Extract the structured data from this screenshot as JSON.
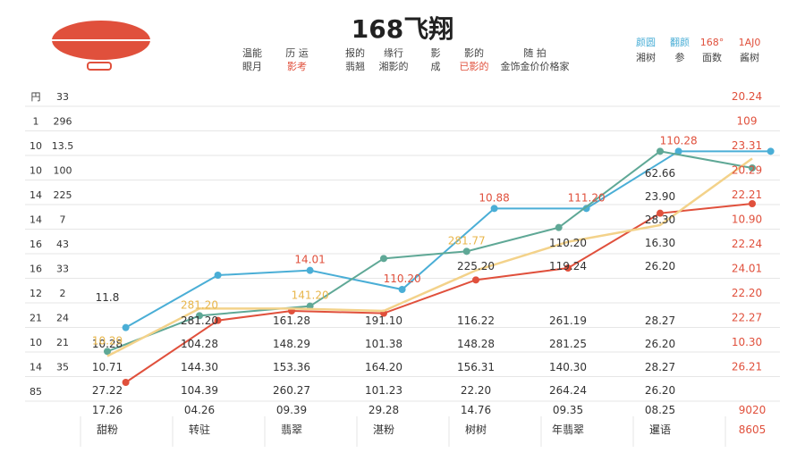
{
  "chart_data": {
    "type": "line",
    "title": "168飞翔",
    "header_left_rows": [
      [
        "温能",
        "历 运",
        "报的",
        "缘行",
        "影",
        "影的",
        "随 拍"
      ],
      [
        "眼月",
        "影考",
        "翡翘",
        "湘影的",
        "成",
        "已影的",
        "金饰金价价格家"
      ]
    ],
    "header_right_rows": [
      [
        "颜圆",
        "翻颜",
        "168°",
        "1AJ0"
      ],
      [
        "湘树",
        "参",
        "面数",
        "酱树"
      ]
    ],
    "row_labels": [
      "円",
      "1",
      "10",
      "10",
      "14",
      "14",
      "16",
      "16",
      "12",
      "21",
      "10",
      "14",
      "85"
    ],
    "row_values": [
      "33",
      "296",
      "13.5",
      "100",
      "225",
      "7",
      "43",
      "33",
      "2",
      "24",
      "21",
      "35",
      ""
    ],
    "right_labels": [
      "20.24",
      "109",
      "23.31",
      "20.29",
      "22.21",
      "10.90",
      "22.24",
      "24.01",
      "22.20",
      "22.27",
      "10.30",
      "26.21"
    ],
    "categories": [
      "甜粉",
      "转驻",
      "翡翠",
      "湛粉",
      "树树",
      "年翡翠",
      "暹语",
      "8605"
    ],
    "bottom_values": [
      "17.26",
      "04.26",
      "09.39",
      "29.28",
      "14.76",
      "09.35",
      "08.25",
      "9020"
    ],
    "table_rows": [
      [
        "11.8",
        "",
        "",
        "",
        "",
        "",
        "",
        ""
      ],
      [
        "",
        "281.20",
        "161.28",
        "191.10",
        "116.22",
        "261.19",
        "28.27",
        ""
      ],
      [
        "10.28",
        "104.28",
        "148.29",
        "101.38",
        "148.28",
        "281.25",
        "26.20",
        ""
      ],
      [
        "10.71",
        "144.30",
        "153.36",
        "164.20",
        "156.31",
        "140.30",
        "28.27",
        ""
      ],
      [
        "27.22",
        "104.39",
        "260.27",
        "101.23",
        "22.20",
        "264.24",
        "26.20",
        ""
      ]
    ],
    "upper_rows": [
      [
        "",
        "",
        "",
        "",
        "",
        "",
        "62.66",
        ""
      ],
      [
        "",
        "",
        "",
        "",
        "",
        "",
        "23.90",
        ""
      ],
      [
        "",
        "",
        "",
        "",
        "",
        "",
        "28.30",
        ""
      ],
      [
        "",
        "",
        "",
        "",
        "",
        "110.20",
        "16.30",
        ""
      ],
      [
        "",
        "",
        "",
        "",
        "225.20",
        "119.24",
        "26.20",
        ""
      ]
    ],
    "annotations": [
      {
        "text": "14.01",
        "color": "#e0503c",
        "series": 0,
        "idx": 2
      },
      {
        "text": "110.20",
        "color": "#e0503c",
        "series": 0,
        "idx": 3
      },
      {
        "text": "10.88",
        "color": "#e0503c",
        "series": 0,
        "idx": 4
      },
      {
        "text": "111.20",
        "color": "#e0503c",
        "series": 0,
        "idx": 5
      },
      {
        "text": "110.28",
        "color": "#e0503c",
        "series": 0,
        "idx": 6
      },
      {
        "text": "281.77",
        "color": "#e8b64b",
        "series": 2,
        "idx": 4
      },
      {
        "text": "281.20",
        "color": "#e8b64b",
        "series": 2,
        "idx": 1
      },
      {
        "text": "141.20",
        "color": "#e8b64b",
        "series": 2,
        "idx": 2
      },
      {
        "text": "10.29",
        "color": "#e8b64b",
        "series": 2,
        "idx": 0
      }
    ],
    "ylim": [
      0,
      12
    ],
    "grid": true,
    "legend": "none",
    "series": [
      {
        "color": "#4aaed6",
        "values": [
          3.2,
          5.4,
          5.6,
          4.8,
          8.2,
          8.2,
          10.6,
          10.6
        ],
        "x": [
          0.2,
          1.2,
          2.2,
          3.2,
          4.2,
          5.2,
          6.2,
          7.2
        ]
      },
      {
        "color": "#e0503c",
        "values": [
          0.9,
          3.5,
          3.9,
          3.8,
          5.2,
          5.7,
          8.0,
          8.4
        ],
        "x": [
          0.2,
          1.2,
          2.0,
          3.0,
          4.0,
          5.0,
          6.0,
          7.0
        ]
      },
      {
        "color": "#5fa896",
        "values": [
          2.2,
          3.7,
          4.1,
          6.1,
          6.4,
          7.4,
          10.6,
          9.9
        ],
        "x": [
          0.0,
          1.0,
          2.2,
          3.0,
          3.9,
          4.9,
          6.0,
          7.0
        ]
      },
      {
        "color": "#f3d28a",
        "values": [
          2.0,
          4.0,
          4.0,
          3.9,
          5.6,
          6.8,
          7.5,
          10.3
        ],
        "x": [
          0.0,
          1.0,
          2.0,
          3.0,
          4.0,
          5.0,
          6.0,
          7.0
        ]
      }
    ]
  },
  "icons": {
    "logo": "airship-logo-icon"
  },
  "colors": {
    "red": "#e0503c",
    "blue": "#4aaed6",
    "teal": "#5fa896",
    "yellow": "#f3d28a",
    "grid": "#d9d9d9"
  }
}
